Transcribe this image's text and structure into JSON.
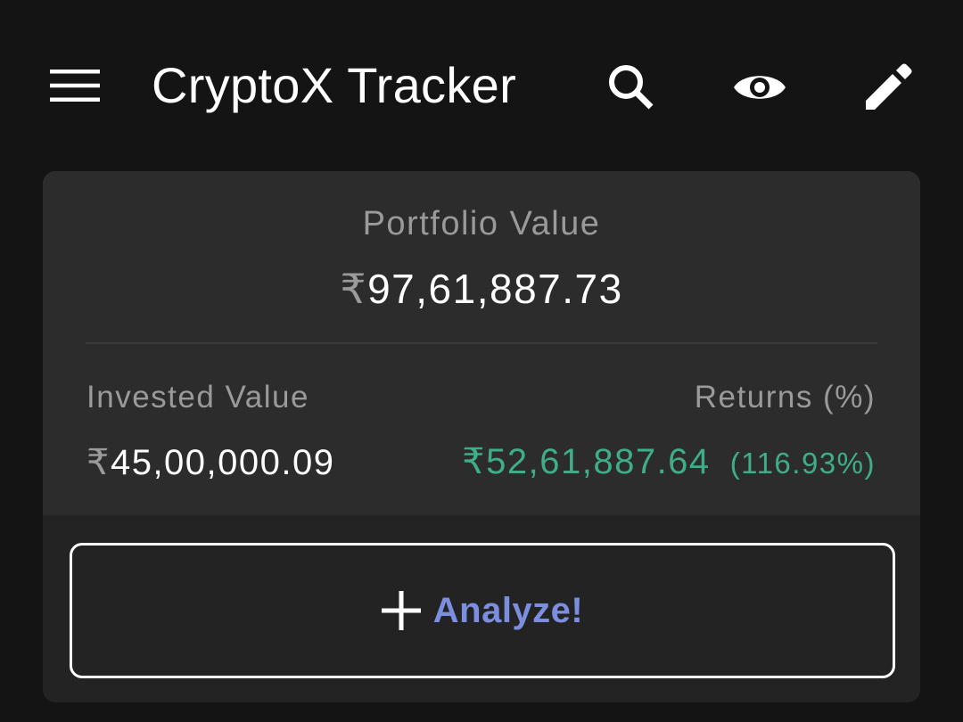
{
  "appbar": {
    "title": "CryptoX Tracker",
    "icons": {
      "menu": "menu-icon",
      "search": "search-icon",
      "visibility": "eye-icon",
      "edit": "pencil-icon"
    }
  },
  "portfolio": {
    "label": "Portfolio Value",
    "currency_symbol": "₹",
    "value": "97,61,887.73",
    "invested_label": "Invested Value",
    "invested_value": "45,00,000.09",
    "returns_label": "Returns (%)",
    "returns_value": "₹52,61,887.64",
    "returns_percent": "(116.93%)"
  },
  "actions": {
    "analyze_label": "Analyze!",
    "analyze_icon": "plus-icon"
  },
  "colors": {
    "background": "#141414",
    "card": "#2c2c2c",
    "card_bottom": "#232323",
    "positive": "#3fae86",
    "accent": "#7b8ee0",
    "muted_text": "#9a9a9a"
  }
}
